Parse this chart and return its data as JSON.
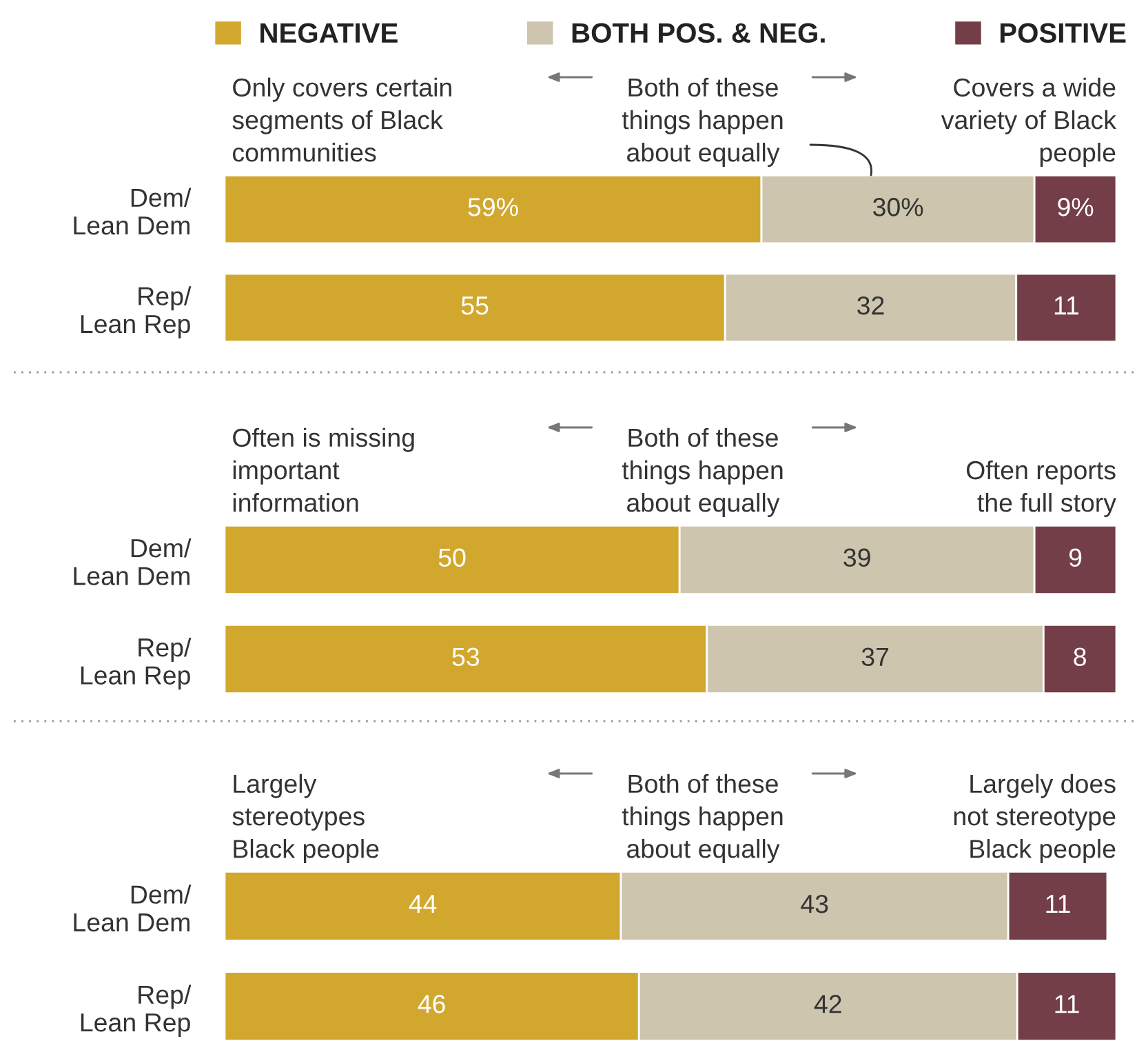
{
  "chart_data": [
    {
      "type": "bar",
      "orientation": "horizontal",
      "stacked": true,
      "categories": [
        "Dem/\nLean Dem",
        "Rep/\nLean Rep"
      ],
      "series": [
        {
          "name": "NEGATIVE",
          "color": "#d1a72e",
          "values": [
            59,
            55
          ],
          "value_labels": [
            "59%",
            "55"
          ]
        },
        {
          "name": "BOTH POS. & NEG.",
          "color": "#cdc5ad",
          "values": [
            30,
            32
          ],
          "value_labels": [
            "30%",
            "32"
          ]
        },
        {
          "name": "POSITIVE",
          "color": "#733e48",
          "values": [
            9,
            11
          ],
          "value_labels": [
            "9%",
            "11"
          ]
        }
      ],
      "tick_labels": "y",
      "legend": "top",
      "grid": false,
      "annotations": [
        "Only covers certain\nsegments of Black\ncommunities",
        "Both of these\nthings happen\nabout equally",
        "Covers a wide\nvariety of Black\npeople"
      ]
    },
    {
      "type": "bar",
      "orientation": "horizontal",
      "stacked": true,
      "categories": [
        "Dem/\nLean Dem",
        "Rep/\nLean Rep"
      ],
      "series": [
        {
          "color": "#d1a72e",
          "values": [
            50,
            53
          ]
        },
        {
          "color": "#cdc5ad",
          "values": [
            39,
            37
          ]
        },
        {
          "color": "#733e48",
          "values": [
            9,
            8
          ]
        }
      ],
      "tick_labels": "y",
      "data_labels": true,
      "grid": false,
      "annotations": [
        "Often is missing\nimportant\ninformation",
        "Both of these\nthings happen\nabout equally",
        "Often reports\nthe full story"
      ]
    },
    {
      "type": "bar",
      "orientation": "horizontal",
      "stacked": true,
      "categories": [
        "Dem/\nLean Dem",
        "Rep/\nLean Rep"
      ],
      "series": [
        {
          "color": "#d1a72e",
          "values": [
            44,
            46
          ]
        },
        {
          "color": "#cdc5ad",
          "values": [
            43,
            42
          ]
        },
        {
          "color": "#733e48",
          "values": [
            11,
            11
          ]
        }
      ],
      "tick_labels": "y",
      "data_labels": true,
      "grid": false,
      "annotations": [
        "Largely\nstereotypes\nBlack people",
        "Both of these\nthings happen\nabout equally",
        "Largely does\nnot stereotype\nBlack people"
      ]
    }
  ]
}
